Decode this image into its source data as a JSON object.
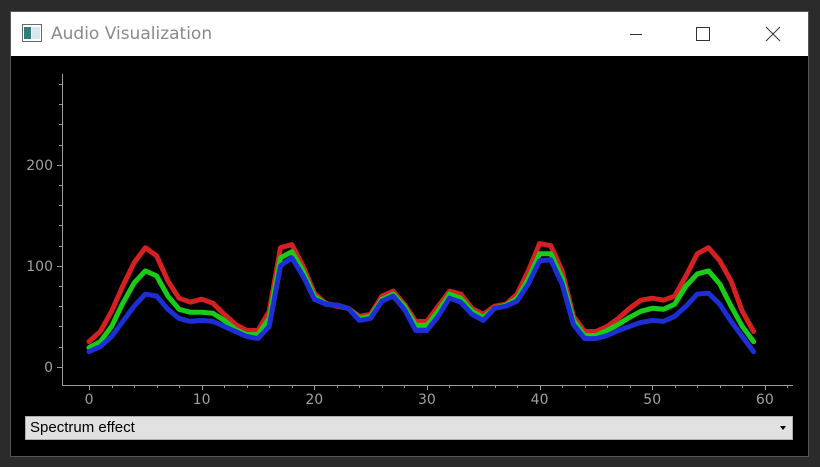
{
  "window": {
    "title": "Audio Visualization"
  },
  "controls": {
    "minimize_icon": "minimize-icon",
    "maximize_icon": "maximize-icon",
    "close_icon": "close-icon"
  },
  "effect_selector": {
    "selected": "Spectrum effect"
  },
  "chart_data": {
    "type": "line",
    "x": [
      0,
      1,
      2,
      3,
      4,
      5,
      6,
      7,
      8,
      9,
      10,
      11,
      12,
      13,
      14,
      15,
      16,
      17,
      18,
      19,
      20,
      21,
      22,
      23,
      24,
      25,
      26,
      27,
      28,
      29,
      30,
      31,
      32,
      33,
      34,
      35,
      36,
      37,
      38,
      39,
      40,
      41,
      42,
      43,
      44,
      45,
      46,
      47,
      48,
      49,
      50,
      51,
      52,
      53,
      54,
      55,
      56,
      57,
      58,
      59
    ],
    "xlim": [
      -2.4,
      62.5
    ],
    "ylim": [
      -18,
      290
    ],
    "xticks": [
      0,
      10,
      20,
      30,
      40,
      50,
      60
    ],
    "yticks": [
      0,
      100,
      200
    ],
    "grid": false,
    "series": [
      {
        "color": "#d42020",
        "values": [
          25,
          35,
          55,
          80,
          103,
          118,
          110,
          85,
          68,
          64,
          67,
          63,
          52,
          42,
          36,
          36,
          55,
          118,
          121,
          100,
          73,
          63,
          60,
          58,
          50,
          52,
          70,
          75,
          62,
          45,
          45,
          60,
          75,
          72,
          58,
          52,
          60,
          62,
          72,
          95,
          122,
          120,
          95,
          50,
          35,
          35,
          40,
          48,
          58,
          66,
          68,
          66,
          70,
          90,
          112,
          118,
          105,
          85,
          55,
          35
        ]
      },
      {
        "color": "#18cc18",
        "values": [
          19,
          25,
          40,
          63,
          83,
          95,
          90,
          70,
          57,
          54,
          54,
          53,
          46,
          37,
          32,
          32,
          48,
          108,
          114,
          95,
          70,
          62,
          61,
          58,
          48,
          50,
          67,
          72,
          60,
          41,
          41,
          55,
          72,
          68,
          55,
          49,
          58,
          61,
          68,
          87,
          112,
          112,
          88,
          46,
          31,
          31,
          36,
          42,
          49,
          55,
          58,
          57,
          62,
          80,
          92,
          95,
          82,
          60,
          40,
          25
        ]
      },
      {
        "color": "#1c2ed4",
        "values": [
          15,
          20,
          30,
          45,
          60,
          72,
          70,
          57,
          48,
          45,
          46,
          45,
          40,
          35,
          30,
          28,
          40,
          100,
          108,
          90,
          67,
          62,
          61,
          58,
          46,
          48,
          65,
          70,
          57,
          36,
          36,
          50,
          68,
          64,
          52,
          46,
          58,
          60,
          65,
          82,
          105,
          106,
          82,
          42,
          28,
          28,
          31,
          36,
          40,
          44,
          46,
          45,
          50,
          60,
          72,
          73,
          62,
          45,
          30,
          15
        ]
      }
    ]
  }
}
